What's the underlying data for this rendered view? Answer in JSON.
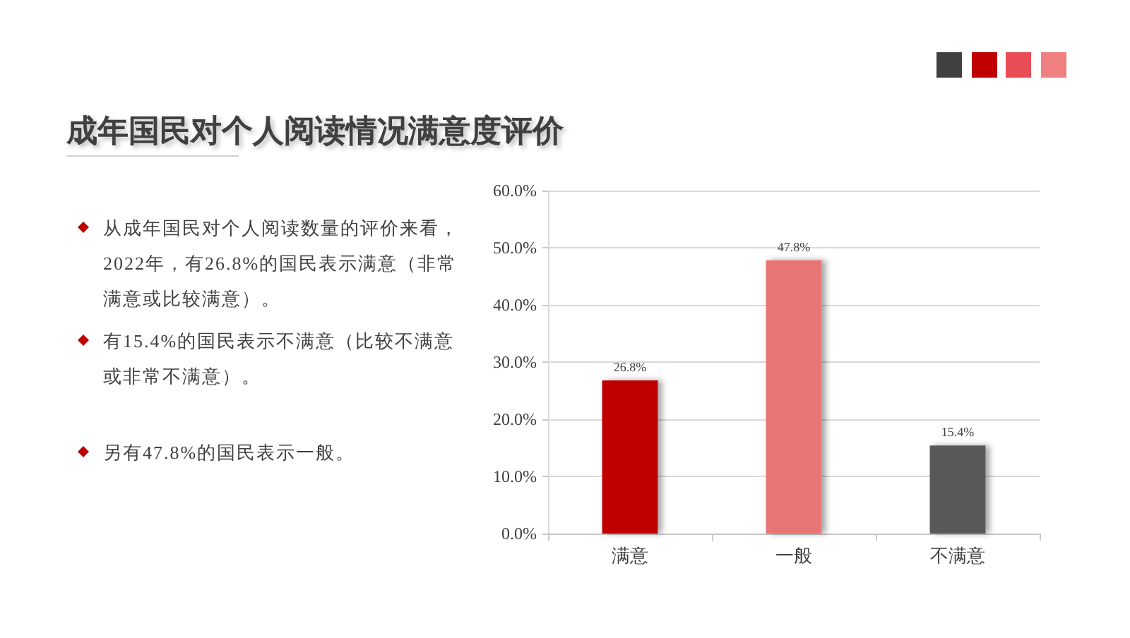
{
  "chart_data": {
    "type": "bar",
    "title": "成年国民对个人阅读情况满意度评价",
    "annotations": [
      "从成年国民对个人阅读数量的评价来看，2022年，有26.8%的国民表示满意（非常满意或比较满意）。",
      "有15.4%的国民表示不满意（比较不满意或非常不满意）。",
      "另有47.8%的国民表示一般。"
    ],
    "categories": [
      "满意",
      "一般",
      "不满意"
    ],
    "values": [
      26.8,
      47.8,
      15.4
    ],
    "colors": [
      "#c00000",
      "#e87474",
      "#595959"
    ],
    "value_labels": [
      "26.8%",
      "47.8%",
      "15.4%"
    ],
    "ylim": [
      0,
      60
    ],
    "yticks": [
      {
        "value": 0,
        "label": "0.0%"
      },
      {
        "value": 10,
        "label": "10.0%"
      },
      {
        "value": 20,
        "label": "20.0%"
      },
      {
        "value": 30,
        "label": "30.0%"
      },
      {
        "value": 40,
        "label": "40.0%"
      },
      {
        "value": 50,
        "label": "50.0%"
      },
      {
        "value": 60,
        "label": "60.0%"
      }
    ],
    "grid": "y"
  }
}
